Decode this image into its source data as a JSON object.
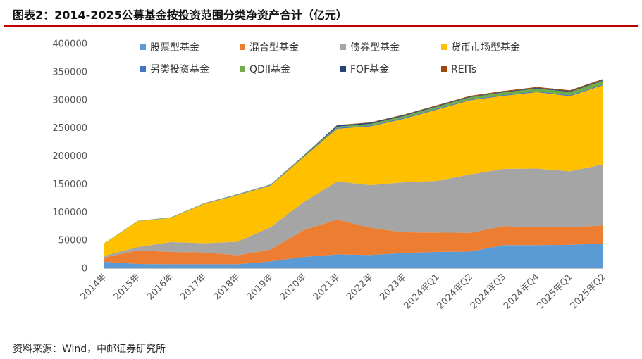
{
  "title": "图表2：2014-2025公募基金按投资范围分类净资产合计（亿元）",
  "source": "资料来源：Wind，中邮证券研究所",
  "chart_data": {
    "type": "area",
    "stacked": true,
    "title": "图表2：2014-2025公募基金按投资范围分类净资产合计（亿元）",
    "xlabel": "",
    "ylabel": "",
    "ylim": [
      0,
      400000
    ],
    "yticks": [
      0,
      50000,
      100000,
      150000,
      200000,
      250000,
      300000,
      350000,
      400000
    ],
    "grid": false,
    "legend_position": "top",
    "categories": [
      "2014年",
      "2015年",
      "2016年",
      "2017年",
      "2018年",
      "2019年",
      "2020年",
      "2021年",
      "2022年",
      "2023年",
      "2024年Q1",
      "2024年Q2",
      "2024年Q3",
      "2024年Q4",
      "2025年Q1",
      "2025年Q2"
    ],
    "series": [
      {
        "name": "股票型基金",
        "color": "#5b9bd5",
        "values": [
          11500,
          7500,
          7000,
          7000,
          7000,
          12000,
          20000,
          24500,
          23500,
          27000,
          29000,
          29500,
          41000,
          41000,
          41500,
          44000
        ]
      },
      {
        "name": "混合型基金",
        "color": "#ed7d31",
        "values": [
          7500,
          24000,
          22000,
          21000,
          16000,
          21000,
          48000,
          62000,
          48500,
          37000,
          34500,
          33500,
          34000,
          32000,
          31500,
          32000
        ]
      },
      {
        "name": "债券型基金",
        "color": "#a5a5a5",
        "values": [
          3000,
          6000,
          17500,
          16500,
          24000,
          40000,
          50000,
          68000,
          76000,
          89000,
          92000,
          104000,
          102000,
          104500,
          99500,
          109000
        ]
      },
      {
        "name": "货币市场型基金",
        "color": "#ffc000",
        "values": [
          22000,
          46000,
          43000,
          70000,
          83000,
          74000,
          80000,
          94000,
          104500,
          113000,
          127000,
          132000,
          130000,
          136000,
          134000,
          141000
        ]
      },
      {
        "name": "另类投资基金",
        "color": "#4472c4",
        "values": [
          200,
          300,
          500,
          500,
          500,
          600,
          700,
          1500,
          1500,
          1500,
          1500,
          1500,
          1500,
          1500,
          1500,
          1500
        ]
      },
      {
        "name": "QDII基金",
        "color": "#70ad47",
        "values": [
          300,
          500,
          700,
          700,
          700,
          800,
          1200,
          2200,
          3000,
          3500,
          3800,
          4000,
          4500,
          5000,
          6000,
          6500
        ]
      },
      {
        "name": "FOF基金",
        "color": "#264478",
        "values": [
          0,
          0,
          0,
          100,
          400,
          600,
          1000,
          2300,
          2000,
          1500,
          1300,
          1200,
          1200,
          1300,
          1400,
          1500
        ]
      },
      {
        "name": "REITs",
        "color": "#9e480e",
        "values": [
          0,
          0,
          0,
          0,
          0,
          0,
          200,
          500,
          700,
          1000,
          1200,
          1300,
          1400,
          1500,
          1600,
          1700
        ]
      }
    ]
  }
}
